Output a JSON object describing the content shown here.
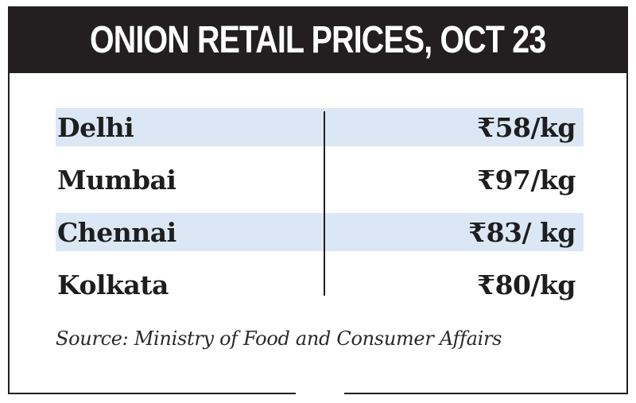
{
  "header": {
    "title": "ONION RETAIL PRICES, OCT 23"
  },
  "chart_data": {
    "type": "table",
    "title": "ONION RETAIL PRICES, OCT 23",
    "rows": [
      {
        "city": "Delhi",
        "price_label": "₹58/kg",
        "value": 58
      },
      {
        "city": "Mumbai",
        "price_label": "₹97/kg",
        "value": 97
      },
      {
        "city": "Chennai",
        "price_label": "₹83/ kg",
        "value": 83
      },
      {
        "city": "Kolkata",
        "price_label": "₹80/kg",
        "value": 80
      }
    ],
    "unit": "₹/kg"
  },
  "source": "Source: Ministry of Food and Consumer Affairs",
  "colors": {
    "header_bg": "#231f20",
    "row_shade": "#dbe7f4",
    "text": "#1e1e1e"
  }
}
